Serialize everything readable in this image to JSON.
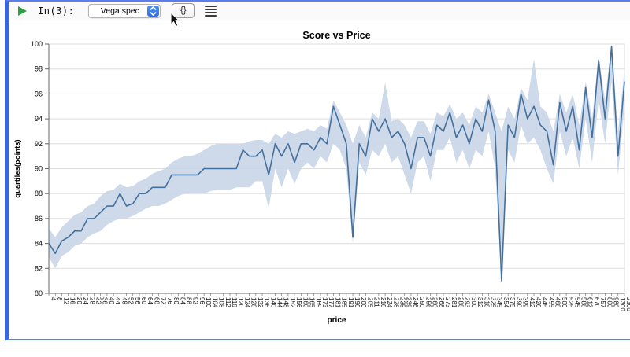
{
  "toolbar": {
    "run_icon": "play-triangle",
    "input_label": "In(3):",
    "output_type_select": {
      "value": "Vega spec"
    },
    "braces_button_label": "{}",
    "menu_icon": "hamburger"
  },
  "theme": {
    "cell_border_blue": "#3c64e6",
    "play_green": "#2f9e44",
    "select_blue": "#2f6fe4"
  },
  "chart_data": {
    "type": "line",
    "title": "Score vs Price",
    "xlabel": "price",
    "ylabel": "quartiles(points)",
    "ylim": [
      80,
      100
    ],
    "y_ticks": [
      80,
      82,
      84,
      86,
      88,
      90,
      92,
      94,
      96,
      98,
      100
    ],
    "grid": true,
    "x": [
      "4",
      "8",
      "12",
      "16",
      "20",
      "24",
      "28",
      "32",
      "36",
      "40",
      "44",
      "48",
      "52",
      "56",
      "60",
      "64",
      "68",
      "72",
      "76",
      "80",
      "84",
      "88",
      "92",
      "96",
      "100",
      "104",
      "108",
      "112",
      "116",
      "120",
      "124",
      "128",
      "132",
      "136",
      "140",
      "144",
      "148",
      "152",
      "156",
      "160",
      "165",
      "169",
      "173",
      "177",
      "181",
      "185",
      "191",
      "196",
      "200",
      "205",
      "211",
      "216",
      "224",
      "228",
      "235",
      "239",
      "246",
      "250",
      "256",
      "260",
      "268",
      "273",
      "281",
      "288",
      "293",
      "300",
      "312",
      "318",
      "325",
      "345",
      "354",
      "375",
      "390",
      "399",
      "412",
      "426",
      "445",
      "455",
      "468",
      "500",
      "525",
      "545",
      "588",
      "612",
      "670",
      "757",
      "800",
      "980",
      "1300",
      "2300"
    ],
    "series": [
      {
        "name": "median",
        "values": [
          84,
          83.2,
          84.2,
          84.5,
          85,
          85,
          86,
          86,
          86.5,
          87,
          87,
          88,
          87,
          87.2,
          88,
          88,
          88.5,
          88.5,
          88.5,
          89.5,
          89.5,
          89.5,
          89.5,
          89.5,
          90,
          90,
          90,
          90,
          90,
          90,
          91.5,
          91,
          91,
          91.5,
          89.5,
          92,
          91,
          92,
          90.5,
          92,
          92,
          91.5,
          92.5,
          92,
          95,
          93.5,
          92,
          84.5,
          92,
          91,
          94,
          93,
          94,
          92.5,
          93,
          92,
          90,
          92.5,
          92.5,
          91,
          93.5,
          93,
          94.5,
          92.5,
          93.5,
          92,
          94,
          93,
          95.5,
          93,
          81,
          93.5,
          92.5,
          96,
          94,
          95,
          93.5,
          93,
          90.3,
          95.3,
          93,
          95,
          91.5,
          96.5,
          92.5,
          98.7,
          94,
          99.8,
          91,
          97
        ]
      },
      {
        "name": "band_lower",
        "values": [
          82.9,
          82,
          83,
          83.3,
          83.8,
          84,
          84.5,
          84.8,
          85,
          85.5,
          85.8,
          86,
          86,
          86.2,
          86.5,
          86.8,
          87,
          87,
          87.2,
          87.5,
          87.8,
          88,
          88,
          88,
          88,
          88.2,
          88.3,
          88.3,
          88.3,
          88.5,
          88.5,
          88.5,
          89,
          89,
          86.8,
          90,
          88.5,
          90,
          88.8,
          90,
          90.5,
          90,
          91,
          90.5,
          92,
          91.5,
          90,
          84,
          90.5,
          89.5,
          91.5,
          91,
          92,
          90.5,
          91,
          89.5,
          88,
          90.5,
          91,
          89,
          91.5,
          91.5,
          92.5,
          90.5,
          91.5,
          90,
          91.5,
          91,
          93,
          90,
          81,
          91.5,
          90.5,
          93.5,
          92,
          92.5,
          91.5,
          90,
          88.8,
          93,
          91,
          92.5,
          90,
          94,
          90.5,
          95.5,
          92,
          97,
          89.5,
          95
        ]
      },
      {
        "name": "band_upper",
        "values": [
          85.2,
          84.5,
          85.3,
          85.8,
          86.3,
          86.5,
          87,
          87.2,
          87.8,
          88.2,
          88.3,
          88.8,
          88.5,
          88.6,
          89,
          89.2,
          89.6,
          89.8,
          90,
          90.5,
          90.8,
          91,
          91,
          91.2,
          91.5,
          91.8,
          92,
          92,
          92,
          92,
          92,
          92.2,
          92.3,
          92.3,
          92,
          92.8,
          92.5,
          93,
          92.8,
          93,
          93.2,
          93,
          93.5,
          93.2,
          95.5,
          94.5,
          93.5,
          92,
          93.5,
          92.5,
          94.5,
          94,
          96.9,
          93.8,
          94,
          93.5,
          92.5,
          93.8,
          93.8,
          92.8,
          94.5,
          94.2,
          95.2,
          94,
          94.5,
          93.5,
          95,
          94.5,
          96,
          94.5,
          93,
          95,
          94,
          96.5,
          95.5,
          98.8,
          95,
          94.5,
          93,
          96,
          94.5,
          96,
          93.5,
          97,
          94,
          99,
          95.5,
          100,
          93,
          98
        ]
      }
    ],
    "legend": "none",
    "colors": {
      "line": "#44709d",
      "band": "#c9d6e8",
      "grid": "#dddddd",
      "axis": "#666666",
      "text": "#000000"
    }
  }
}
